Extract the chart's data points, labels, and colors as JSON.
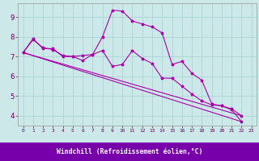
{
  "xlabel": "Windchill (Refroidissement éolien,°C)",
  "bg_color": "#cce8e8",
  "grid_color": "#aad4d4",
  "line_color": "#aa00aa",
  "bar_color": "#7700aa",
  "xlim": [
    -0.5,
    23.5
  ],
  "ylim": [
    3.5,
    9.7
  ],
  "yticks": [
    4,
    5,
    6,
    7,
    8,
    9
  ],
  "xticks": [
    0,
    1,
    2,
    3,
    4,
    5,
    6,
    7,
    8,
    9,
    10,
    11,
    12,
    13,
    14,
    15,
    16,
    17,
    18,
    19,
    20,
    21,
    22,
    23
  ],
  "s1x": [
    0,
    1,
    2,
    3,
    4,
    5,
    6,
    7,
    8,
    9,
    10,
    11,
    12,
    13,
    14,
    15,
    16,
    17,
    18,
    19,
    20,
    21,
    22
  ],
  "s1y": [
    7.2,
    7.9,
    7.4,
    7.4,
    7.0,
    7.0,
    7.05,
    7.1,
    8.0,
    9.35,
    9.3,
    8.8,
    8.65,
    8.5,
    8.2,
    6.6,
    6.75,
    6.15,
    5.8,
    4.6,
    4.5,
    4.3,
    3.7
  ],
  "s2x": [
    0,
    1,
    2,
    3,
    4,
    5,
    6,
    7,
    8,
    9,
    10,
    11,
    12,
    13,
    14,
    15,
    16,
    17,
    18,
    19,
    20,
    21,
    22
  ],
  "s2y": [
    7.2,
    7.85,
    7.45,
    7.35,
    7.05,
    7.0,
    6.8,
    7.1,
    7.3,
    6.5,
    6.6,
    7.3,
    6.9,
    6.65,
    5.9,
    5.9,
    5.5,
    5.1,
    4.75,
    4.55,
    4.5,
    4.35,
    4.0
  ],
  "s3x": [
    0,
    22
  ],
  "s3y": [
    7.2,
    3.7
  ],
  "s4x": [
    0,
    22
  ],
  "s4y": [
    7.2,
    4.0
  ]
}
